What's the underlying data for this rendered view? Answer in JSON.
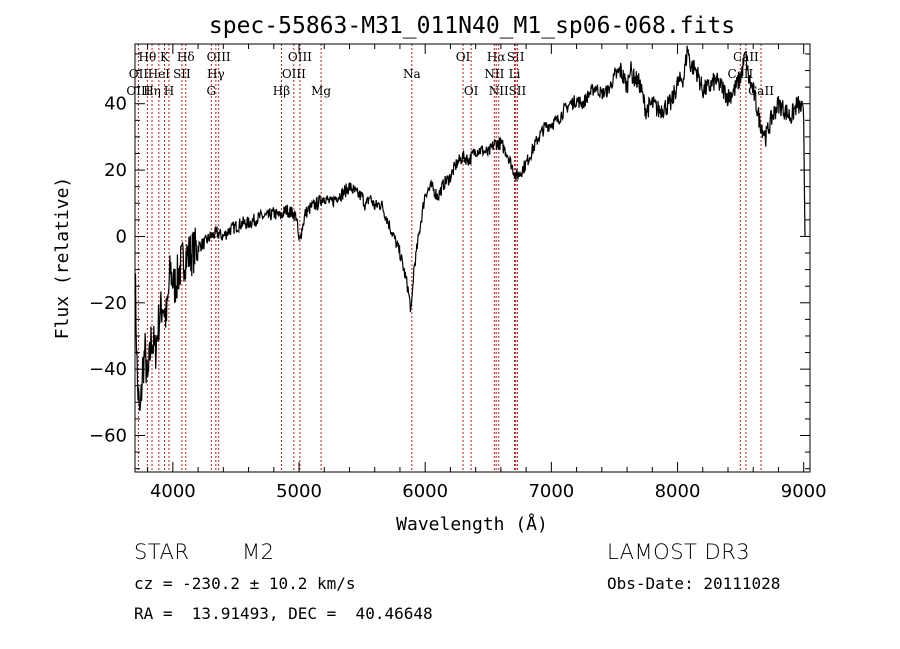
{
  "chart_data": {
    "type": "line",
    "title": "spec-55863-M31_011N40_M1_sp06-068.fits",
    "xlabel": "Wavelength (Å)",
    "ylabel": "Flux (relative)",
    "xlim": [
      3700,
      9050
    ],
    "ylim": [
      -71,
      58
    ],
    "xticks": [
      4000,
      5000,
      6000,
      7000,
      8000,
      9000
    ],
    "yticks": [
      -60,
      -40,
      -20,
      0,
      20,
      40
    ],
    "series": [
      {
        "name": "flux",
        "x": [
          3700,
          3720,
          3740,
          3760,
          3780,
          3800,
          3830,
          3860,
          3890,
          3920,
          3950,
          3980,
          4010,
          4040,
          4070,
          4100,
          4150,
          4200,
          4250,
          4300,
          4350,
          4400,
          4450,
          4500,
          4550,
          4600,
          4650,
          4700,
          4750,
          4800,
          4850,
          4900,
          4950,
          4980,
          5000,
          5050,
          5100,
          5150,
          5200,
          5250,
          5300,
          5350,
          5400,
          5450,
          5500,
          5530,
          5560,
          5600,
          5650,
          5700,
          5750,
          5800,
          5830,
          5860,
          5890,
          5910,
          5930,
          5960,
          6000,
          6050,
          6100,
          6150,
          6200,
          6250,
          6300,
          6350,
          6400,
          6450,
          6500,
          6550,
          6600,
          6650,
          6700,
          6720,
          6750,
          6800,
          6850,
          6900,
          6950,
          7000,
          7050,
          7100,
          7150,
          7200,
          7250,
          7300,
          7350,
          7400,
          7450,
          7500,
          7550,
          7600,
          7620,
          7650,
          7700,
          7750,
          7800,
          7850,
          7900,
          7950,
          8000,
          8050,
          8080,
          8100,
          8150,
          8200,
          8250,
          8300,
          8350,
          8400,
          8450,
          8500,
          8540,
          8560,
          8600,
          8650,
          8700,
          8750,
          8800,
          8850,
          8900,
          8950,
          8990,
          9000,
          9010
        ],
        "y": [
          -10,
          -45,
          -55,
          -40,
          -35,
          -45,
          -30,
          -35,
          -25,
          -20,
          -25,
          -10,
          -15,
          -12,
          -8,
          -6,
          -5,
          -3,
          -2,
          0,
          1,
          0,
          2,
          3,
          4,
          4,
          5,
          6,
          6,
          7,
          6,
          8,
          7,
          6,
          -2,
          7,
          9,
          10,
          12,
          10,
          12,
          13,
          15,
          13,
          12,
          9,
          12,
          9,
          10,
          5,
          0,
          -5,
          -10,
          -15,
          -23,
          -10,
          -5,
          3,
          13,
          15,
          12,
          16,
          18,
          22,
          24,
          23,
          26,
          26,
          25,
          28,
          28,
          25,
          20,
          18,
          19,
          22,
          26,
          30,
          33,
          34,
          35,
          38,
          40,
          41,
          40,
          43,
          45,
          43,
          44,
          48,
          50,
          45,
          51,
          48,
          46,
          38,
          40,
          38,
          39,
          40,
          46,
          48,
          57,
          52,
          50,
          44,
          45,
          47,
          45,
          42,
          44,
          48,
          55,
          48,
          44,
          35,
          30,
          36,
          40,
          38,
          36,
          40,
          38,
          35,
          0
        ]
      }
    ],
    "lines": [
      {
        "label": "Hθ",
        "wl": 3798,
        "row": 0
      },
      {
        "label": "OII",
        "wl": 3727,
        "row": 1
      },
      {
        "label": "OIII",
        "wl": 3727,
        "row": 2
      },
      {
        "label": "K",
        "wl": 3934,
        "row": 0
      },
      {
        "label": "HeI",
        "wl": 3889,
        "row": 1
      },
      {
        "label": "Hη",
        "wl": 3835,
        "row": 2
      },
      {
        "label": "Hδ",
        "wl": 4102,
        "row": 0
      },
      {
        "label": "SII",
        "wl": 4072,
        "row": 1
      },
      {
        "label": "H",
        "wl": 3969,
        "row": 2
      },
      {
        "label": "OIII",
        "wl": 4363,
        "row": 0
      },
      {
        "label": "Hγ",
        "wl": 4341,
        "row": 1
      },
      {
        "label": "G",
        "wl": 4305,
        "row": 2
      },
      {
        "label": "OIII",
        "wl": 5007,
        "row": 0
      },
      {
        "label": "OIII",
        "wl": 4959,
        "row": 1
      },
      {
        "label": "Hβ",
        "wl": 4861,
        "row": 2
      },
      {
        "label": "Mg",
        "wl": 5175,
        "row": 2
      },
      {
        "label": "Na",
        "wl": 5894,
        "row": 1
      },
      {
        "label": "OI",
        "wl": 6300,
        "row": 0
      },
      {
        "label": "OI",
        "wl": 6364,
        "row": 2
      },
      {
        "label": "Hα",
        "wl": 6563,
        "row": 0
      },
      {
        "label": "NII",
        "wl": 6548,
        "row": 1
      },
      {
        "label": "NII",
        "wl": 6583,
        "row": 2
      },
      {
        "label": "SII",
        "wl": 6717,
        "row": 0
      },
      {
        "label": "Li",
        "wl": 6708,
        "row": 1
      },
      {
        "label": "SII",
        "wl": 6731,
        "row": 2
      },
      {
        "label": "CaII",
        "wl": 8542,
        "row": 0
      },
      {
        "label": "CaII",
        "wl": 8498,
        "row": 1
      },
      {
        "label": "CaII",
        "wl": 8662,
        "row": 2
      }
    ]
  },
  "info": {
    "class": "STAR",
    "subclass": "M2",
    "survey": "LAMOST DR3",
    "cz": "cz = -230.2 ± 10.2 km/s",
    "obs_date": "Obs-Date: 20111028",
    "coords": "RA =  13.91493, DEC =  40.46648"
  }
}
